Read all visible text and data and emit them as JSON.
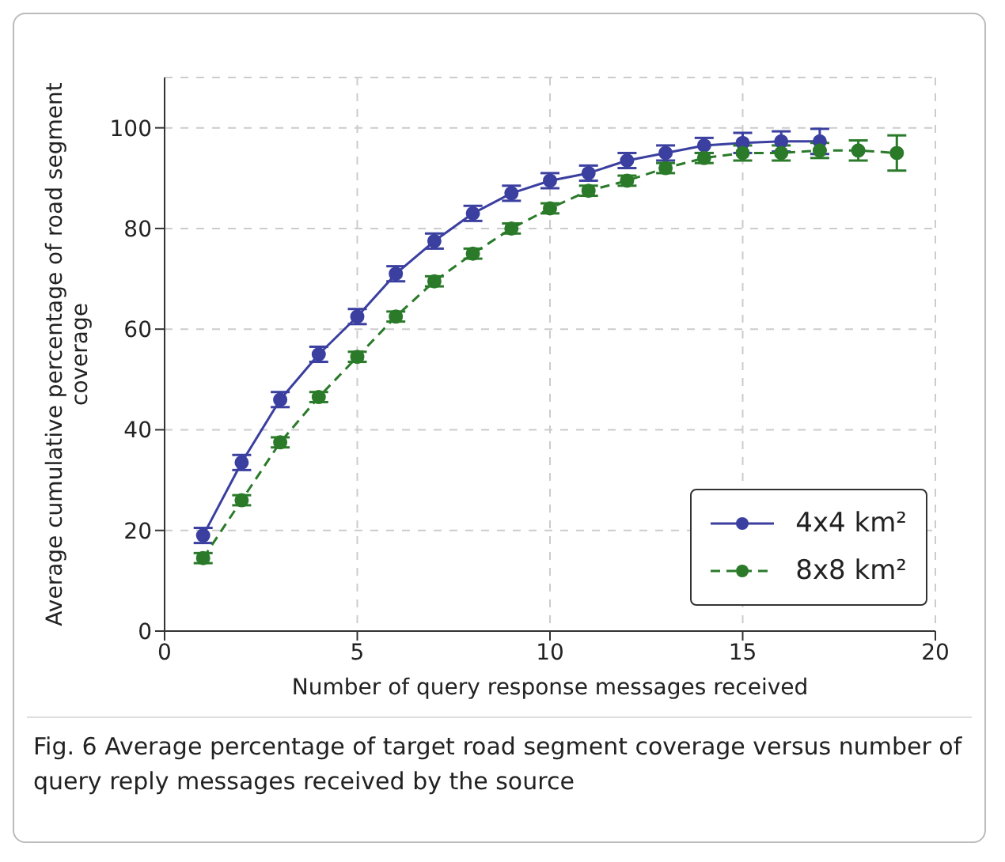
{
  "chart_data": {
    "type": "line",
    "xlabel": "Number of query response messages received",
    "ylabel": "Average cumulative percentage of road segment coverage",
    "xlim": [
      0,
      20
    ],
    "xticks": [
      0,
      5,
      10,
      15,
      20
    ],
    "ylim": [
      0,
      110
    ],
    "yticks": [
      0,
      20,
      40,
      60,
      80,
      100
    ],
    "grid": true,
    "legend": "bottom right",
    "marker": "circle",
    "series": [
      {
        "name": "4x4 km²",
        "color": "#3a3fa0",
        "line_style": "solid",
        "x": [
          1,
          2,
          3,
          4,
          5,
          6,
          7,
          8,
          9,
          10,
          11,
          12,
          13,
          14,
          15,
          16,
          17
        ],
        "values": [
          19,
          33.5,
          46,
          55,
          62.5,
          71,
          77.5,
          83,
          87,
          89.5,
          91,
          93.5,
          95,
          96.5,
          97,
          97.3,
          97.3
        ],
        "errors": [
          1.5,
          1.5,
          1.5,
          1.5,
          1.5,
          1.5,
          1.5,
          1.5,
          1.5,
          1.5,
          1.5,
          1.5,
          1.5,
          1.5,
          2,
          2,
          2.5
        ]
      },
      {
        "name": "8x8 km²",
        "color": "#2a7a2a",
        "line_style": "dashed",
        "x": [
          1,
          2,
          3,
          4,
          5,
          6,
          7,
          8,
          9,
          10,
          11,
          12,
          13,
          14,
          15,
          16,
          17,
          18,
          19
        ],
        "values": [
          14.5,
          26,
          37.5,
          46.5,
          54.5,
          62.5,
          69.5,
          75,
          80,
          84,
          87.5,
          89.5,
          92,
          94,
          95,
          95,
          95.5,
          95.5,
          95
        ],
        "errors": [
          1,
          1,
          1,
          1,
          1,
          1,
          1,
          1,
          1,
          1,
          1,
          1,
          1,
          1,
          1.5,
          1.5,
          1.5,
          2,
          3.5
        ]
      }
    ],
    "annotations": [
      "Fig. 6 Average percentage of target road segment coverage versus number of query reply messages received by the source"
    ]
  }
}
